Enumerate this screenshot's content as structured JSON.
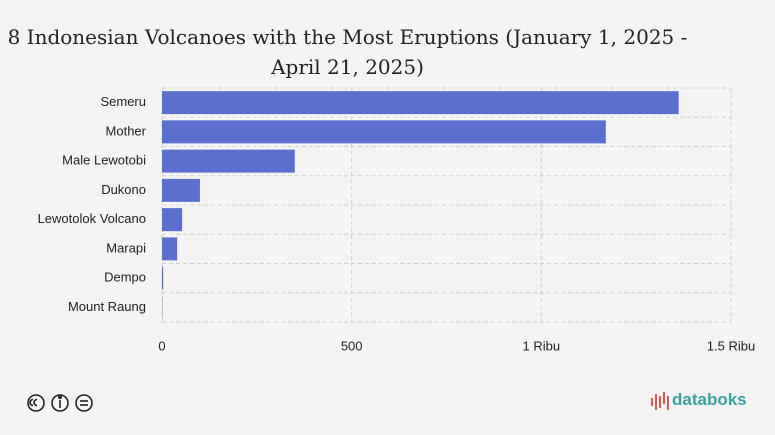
{
  "chart_data": {
    "type": "bar",
    "orientation": "horizontal",
    "title": "8 Indonesian Volcanoes with the Most Eruptions (January 1, 2025 - April 21, 2025)",
    "categories": [
      "Semeru",
      "Mother",
      "Male Lewotobi",
      "Dukono",
      "Lewotolok Volcano",
      "Marapi",
      "Dempo",
      "Mount Raung"
    ],
    "values": [
      1362,
      1170,
      350,
      100,
      53,
      40,
      3,
      1
    ],
    "color": "#5b6fcf",
    "xlim": [
      0,
      1500
    ],
    "xticks": [
      0,
      500,
      {
        "value": 1000,
        "label": "1 Ribu"
      },
      {
        "value": 1500,
        "label": "1.5 Ribu"
      }
    ],
    "grid": true
  },
  "footer": {
    "brand": "databoks"
  }
}
